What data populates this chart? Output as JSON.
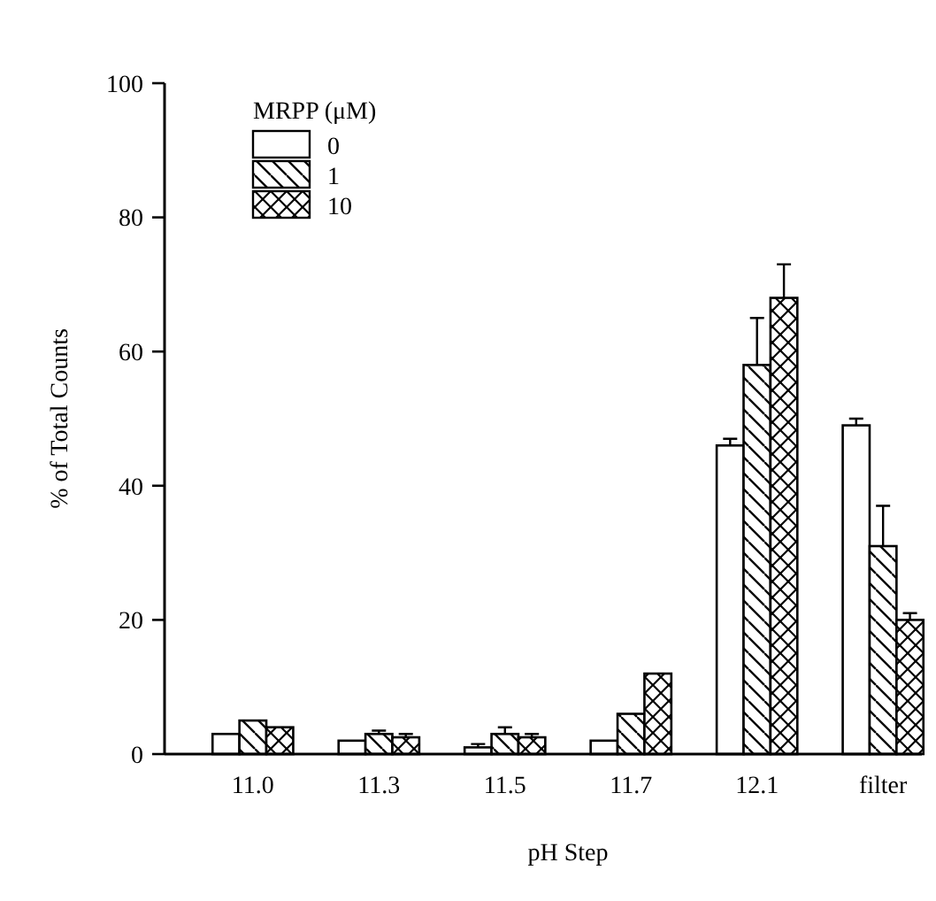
{
  "chart_data": {
    "type": "bar",
    "xlabel": "pH Step",
    "ylabel": "% of Total Counts",
    "legend_title": "MRPP (μM)",
    "categories": [
      "11.0",
      "11.3",
      "11.5",
      "11.7",
      "12.1",
      "filter"
    ],
    "series": [
      {
        "name": "0",
        "color": "#ffffff",
        "values": [
          3,
          2,
          1,
          2,
          46,
          49
        ],
        "errors": [
          null,
          null,
          0.5,
          null,
          1,
          1
        ]
      },
      {
        "name": "1",
        "color": "#ffffff",
        "values": [
          5,
          3,
          3,
          6,
          58,
          31
        ],
        "errors": [
          null,
          0.5,
          1,
          null,
          7,
          6
        ]
      },
      {
        "name": "10",
        "color": "#ffffff",
        "values": [
          4,
          2.5,
          2.5,
          12,
          68,
          20
        ],
        "errors": [
          null,
          0.5,
          0.5,
          null,
          5,
          1
        ]
      }
    ],
    "ylim": [
      0,
      100
    ],
    "yticks": [
      0,
      20,
      40,
      60,
      80,
      100
    ],
    "grid": false,
    "legend": "top left"
  }
}
